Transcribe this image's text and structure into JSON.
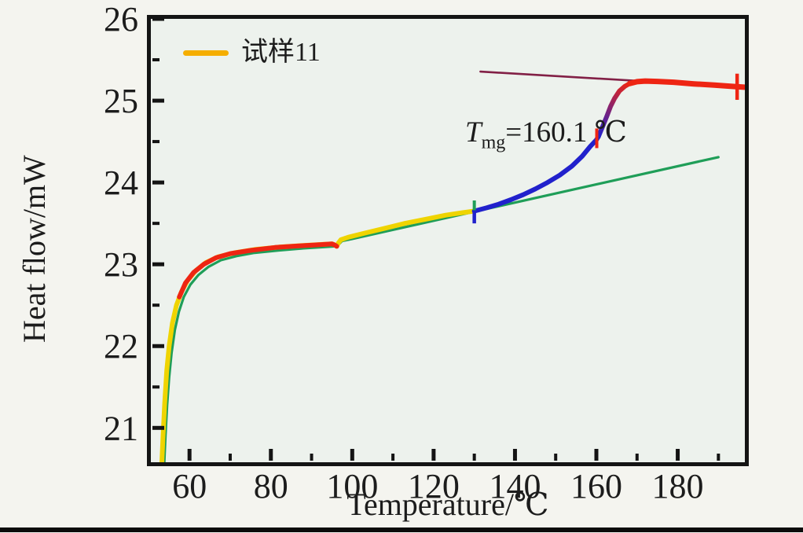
{
  "page": {
    "background": "#f4f4ef",
    "plot_background": "#edf2ed",
    "frame_color": "#141414",
    "bottom_bar_color": "#0b0b0b",
    "text_color": "#1c1c1c"
  },
  "legend": {
    "label": "试样11",
    "swatch_color": "#f5ae00"
  },
  "annotation": {
    "symbol": "T",
    "subscript": "mg",
    "value": "=160.1 ℃"
  },
  "chart_data": {
    "type": "line",
    "title": "",
    "xlabel": "Temperature/℃",
    "ylabel": "Heat flow/mW",
    "xlim": [
      50.5,
      196.5
    ],
    "ylim": [
      20.58,
      26.0
    ],
    "grid": false,
    "legend_position": "top-left",
    "x_ticks_major": [
      60,
      80,
      100,
      120,
      140,
      160,
      180
    ],
    "x_ticks_minor": [
      70,
      90,
      110,
      130,
      150,
      170,
      190
    ],
    "y_ticks_major": [
      21,
      22,
      23,
      24,
      25,
      26
    ],
    "y_ticks_minor": [
      21.5,
      22.5,
      23.5,
      24.5,
      25.5
    ],
    "glass_transition_temp_c": 160.1,
    "series": [
      {
        "name": "baseline-green",
        "color": "#1f9e58",
        "width": 3.2,
        "points": [
          [
            53.8,
            20.58
          ],
          [
            54.1,
            20.9
          ],
          [
            54.5,
            21.28
          ],
          [
            55.0,
            21.62
          ],
          [
            55.6,
            21.92
          ],
          [
            56.4,
            22.2
          ],
          [
            57.4,
            22.42
          ],
          [
            58.6,
            22.6
          ],
          [
            60.2,
            22.75
          ],
          [
            62.2,
            22.87
          ],
          [
            64.7,
            22.97
          ],
          [
            67.7,
            23.05
          ],
          [
            71.5,
            23.1
          ],
          [
            76,
            23.14
          ],
          [
            82,
            23.17
          ],
          [
            88,
            23.195
          ],
          [
            93,
            23.21
          ],
          [
            96,
            23.22
          ],
          [
            96.6,
            23.24
          ],
          [
            97.5,
            23.285
          ],
          [
            100,
            23.31
          ],
          [
            190,
            24.31
          ]
        ]
      },
      {
        "name": "upper-baseline-maroon",
        "color": "#822046",
        "width": 2.6,
        "points": [
          [
            131.5,
            25.355
          ],
          [
            172.5,
            25.235
          ]
        ]
      },
      {
        "name": "sample-curve-yellow",
        "color": "#efd400",
        "width": 6,
        "points": [
          [
            53.2,
            20.58
          ],
          [
            53.5,
            20.9
          ],
          [
            53.9,
            21.3
          ],
          [
            54.4,
            21.7
          ],
          [
            55.0,
            22.0
          ],
          [
            55.8,
            22.28
          ],
          [
            56.8,
            22.5
          ],
          [
            58,
            22.66
          ],
          [
            59.5,
            22.8
          ],
          [
            61.5,
            22.92
          ],
          [
            64,
            23.02
          ],
          [
            67,
            23.09
          ],
          [
            71,
            23.14
          ],
          [
            76,
            23.18
          ],
          [
            82,
            23.21
          ],
          [
            88,
            23.23
          ],
          [
            93,
            23.245
          ],
          [
            95,
            23.25
          ],
          [
            95.7,
            23.235
          ],
          [
            96.2,
            23.22
          ],
          [
            96.6,
            23.26
          ],
          [
            97.2,
            23.3
          ],
          [
            99,
            23.33
          ],
          [
            103,
            23.38
          ],
          [
            108,
            23.44
          ],
          [
            113,
            23.5
          ],
          [
            118,
            23.55
          ],
          [
            123,
            23.6
          ],
          [
            127,
            23.63
          ],
          [
            130,
            23.65
          ]
        ]
      },
      {
        "name": "analysis-red-low",
        "color": "#ee2513",
        "width": 6,
        "points": [
          [
            57.5,
            22.6
          ],
          [
            59,
            22.77
          ],
          [
            61,
            22.9
          ],
          [
            63.5,
            23.0
          ],
          [
            66.5,
            23.08
          ],
          [
            70,
            23.13
          ],
          [
            75,
            23.17
          ],
          [
            81,
            23.205
          ],
          [
            87,
            23.225
          ],
          [
            92,
            23.24
          ],
          [
            95,
            23.25
          ],
          [
            95.7,
            23.235
          ],
          [
            96.2,
            23.22
          ]
        ]
      },
      {
        "name": "transition-blue",
        "color": "#2121cc",
        "width": 6,
        "points": [
          [
            130,
            23.65
          ],
          [
            133,
            23.69
          ],
          [
            136,
            23.735
          ],
          [
            139,
            23.79
          ],
          [
            142,
            23.85
          ],
          [
            145,
            23.92
          ],
          [
            148,
            24.0
          ],
          [
            151,
            24.09
          ],
          [
            154,
            24.2
          ],
          [
            156.5,
            24.32
          ],
          [
            158.5,
            24.44
          ],
          [
            160,
            24.52
          ],
          [
            160.5,
            24.56
          ]
        ]
      },
      {
        "name": "transition-gradient",
        "color": "#2121cc",
        "gradient": [
          "#2121cc",
          "#ee2513"
        ],
        "width": 6,
        "points": [
          [
            160.5,
            24.56
          ],
          [
            161.5,
            24.68
          ],
          [
            162.5,
            24.8
          ],
          [
            163.5,
            24.93
          ],
          [
            164.5,
            25.03
          ],
          [
            165.7,
            25.12
          ],
          [
            167,
            25.175
          ],
          [
            168.2,
            25.21
          ]
        ]
      },
      {
        "name": "plateau-red",
        "color": "#ee2513",
        "width": 7,
        "points": [
          [
            168.2,
            25.21
          ],
          [
            170,
            25.232
          ],
          [
            172,
            25.24
          ],
          [
            175,
            25.235
          ],
          [
            179,
            25.225
          ],
          [
            184,
            25.205
          ],
          [
            189,
            25.19
          ],
          [
            193,
            25.175
          ],
          [
            196.3,
            25.165
          ]
        ]
      }
    ],
    "markers": [
      {
        "name": "onset-tick-green",
        "x": 130,
        "y1": 23.62,
        "y2": 23.78,
        "color": "#1f9e58",
        "width": 4
      },
      {
        "name": "onset-tick-blue",
        "x": 130,
        "y1": 23.5,
        "y2": 23.66,
        "color": "#2121cc",
        "width": 4.5
      },
      {
        "name": "tmg-tick-red",
        "x": 160.1,
        "y1": 24.42,
        "y2": 24.66,
        "color": "#ee2513",
        "width": 4
      },
      {
        "name": "end-tick-red",
        "x": 194.6,
        "y1": 25.01,
        "y2": 25.33,
        "color": "#ee2513",
        "width": 4.5
      }
    ]
  }
}
